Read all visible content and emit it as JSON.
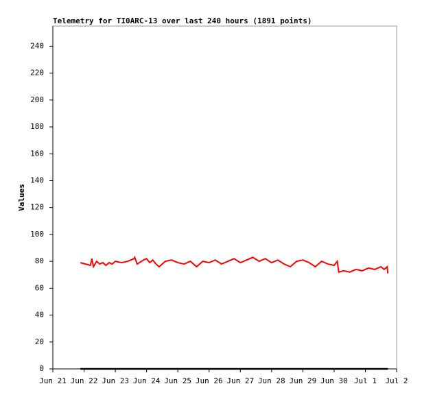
{
  "chart_data": {
    "type": "line",
    "title": "Telemetry for TI0ARC-13 over last 240 hours (1891 points)",
    "y_label": "Values",
    "x": [
      0.88,
      1.05,
      1.2,
      1.25,
      1.3,
      1.4,
      1.5,
      1.6,
      1.7,
      1.8,
      1.9,
      2.0,
      2.2,
      2.4,
      2.6,
      2.62,
      2.7,
      2.9,
      3.0,
      3.1,
      3.2,
      3.3,
      3.4,
      3.6,
      3.8,
      4.0,
      4.2,
      4.4,
      4.6,
      4.8,
      5.0,
      5.2,
      5.4,
      5.6,
      5.8,
      6.0,
      6.2,
      6.4,
      6.6,
      6.8,
      7.0,
      7.2,
      7.4,
      7.6,
      7.8,
      8.0,
      8.2,
      8.4,
      8.6,
      8.8,
      9.0,
      9.1,
      9.15,
      9.3,
      9.5,
      9.7,
      9.9,
      10.1,
      10.3,
      10.5,
      10.6,
      10.7,
      10.72
    ],
    "series": [
      {
        "color": "#ff0000",
        "values": [
          79,
          78,
          77,
          82,
          76,
          80,
          78,
          79,
          77,
          79,
          78,
          80,
          79,
          80,
          82,
          83,
          78,
          81,
          82,
          79,
          81,
          78,
          76,
          80,
          81,
          79,
          78,
          80,
          76,
          80,
          79,
          81,
          78,
          80,
          82,
          79,
          81,
          83,
          80,
          82,
          79,
          81,
          78,
          76,
          80,
          81,
          79,
          76,
          80,
          78,
          77,
          80,
          72,
          73,
          72,
          74,
          73,
          75,
          74,
          76,
          74,
          76,
          71
        ]
      },
      {
        "color": "#000000",
        "x": [
          0.88,
          10.72
        ],
        "values": [
          0,
          0
        ]
      }
    ],
    "xlim": [
      0,
      11
    ],
    "xticks": [
      {
        "value": 0,
        "label": "Jun 21"
      },
      {
        "value": 1,
        "label": "Jun 22"
      },
      {
        "value": 2,
        "label": "Jun 23"
      },
      {
        "value": 3,
        "label": "Jun 24"
      },
      {
        "value": 4,
        "label": "Jun 25"
      },
      {
        "value": 5,
        "label": "Jun 26"
      },
      {
        "value": 6,
        "label": "Jun 27"
      },
      {
        "value": 7,
        "label": "Jun 28"
      },
      {
        "value": 8,
        "label": "Jun 29"
      },
      {
        "value": 9,
        "label": "Jun 30"
      },
      {
        "value": 10,
        "label": "Jul 1"
      },
      {
        "value": 11,
        "label": "Jul 2"
      }
    ],
    "ylim": [
      0,
      255
    ],
    "yticks": [
      0,
      20,
      40,
      60,
      80,
      100,
      120,
      140,
      160,
      180,
      200,
      220,
      240
    ]
  }
}
